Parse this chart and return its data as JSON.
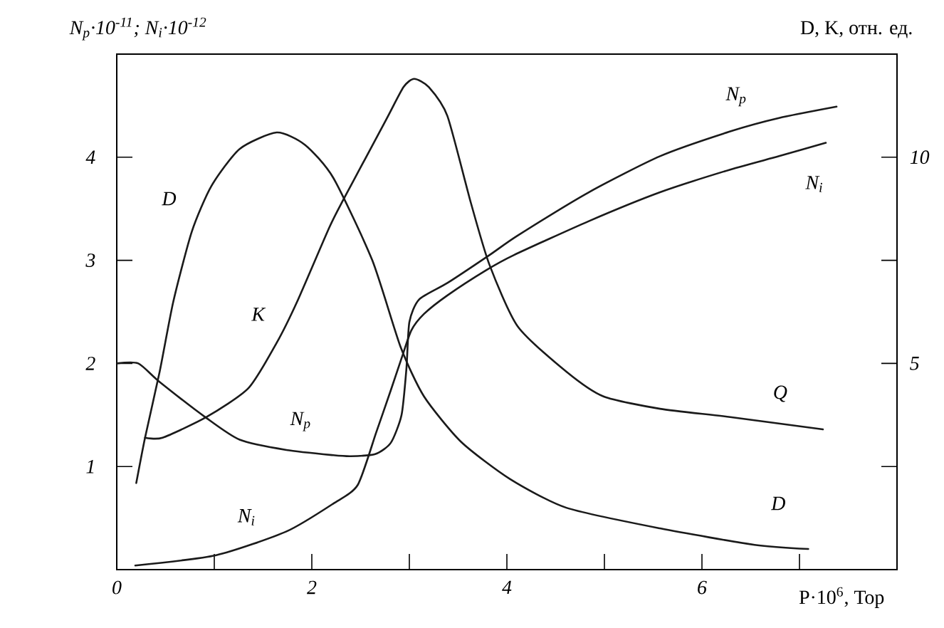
{
  "chart_data": {
    "type": "line",
    "xlabel": "P·10$^{6}$, Тор",
    "ylabel": "N$_{p}$·10$^{-11}$; N$_{i}$·10$^{-12}$",
    "y2label": "D, K, отн. ед.",
    "xlim": [
      0,
      8
    ],
    "xticks": [
      0,
      {
        "value": 1,
        "label": null
      },
      2,
      {
        "value": 3,
        "label": null
      },
      4,
      {
        "value": 5,
        "label": null
      },
      6,
      {
        "value": 7,
        "label": null
      }
    ],
    "ylim": [
      0,
      5
    ],
    "yticks": [
      1,
      2,
      3,
      4
    ],
    "y2lim": [
      0,
      12.5
    ],
    "y2ticks": [
      {
        "value": 2.5,
        "label": null
      },
      5,
      {
        "value": 7.5,
        "label": null
      },
      10
    ],
    "line_style": "solid",
    "series": [
      {
        "name": "D",
        "axis": "y2",
        "color": "#1a1a1a",
        "x": [
          0.2,
          0.29,
          0.44,
          0.58,
          0.77,
          0.97,
          1.26,
          1.64,
          1.93,
          2.22,
          2.62,
          2.91,
          3.15,
          3.53,
          4.03,
          4.61,
          5.57,
          6.54,
          7.09
        ],
        "values": [
          2.1,
          3.2,
          4.8,
          6.5,
          8.2,
          9.3,
          10.2,
          10.6,
          10.3,
          9.5,
          7.5,
          5.4,
          4.2,
          3.1,
          2.2,
          1.5,
          1.0,
          0.6,
          0.5
        ]
      },
      {
        "name": "K",
        "axis": "y2",
        "color": "#1a1a1a",
        "x": [
          0.29,
          0.47,
          0.92,
          1.35,
          1.64,
          1.85,
          2.18,
          2.33,
          2.76,
          2.94,
          3.05,
          3.2,
          3.39,
          3.63,
          3.82,
          4.11,
          4.61,
          4.99,
          5.57,
          6.29,
          7.24
        ],
        "values": [
          3.2,
          3.2,
          3.7,
          4.4,
          5.5,
          6.5,
          8.3,
          9.0,
          10.9,
          11.7,
          11.9,
          11.7,
          11.0,
          8.9,
          7.4,
          5.9,
          4.8,
          4.2,
          3.9,
          3.7,
          3.4
        ]
      },
      {
        "name": "N$_{p}$",
        "color": "#1a1a1a",
        "x": [
          0,
          0.22,
          0.44,
          0.92,
          1.26,
          1.74,
          2.22,
          2.4,
          2.65,
          2.81,
          2.92,
          2.97,
          3.0,
          3.1,
          3.39,
          3.82,
          4.11,
          4.84,
          5.57,
          6.29,
          6.79,
          7.38
        ],
        "values": [
          2.0,
          2.0,
          1.82,
          1.47,
          1.26,
          1.16,
          1.11,
          1.1,
          1.12,
          1.23,
          1.5,
          1.95,
          2.4,
          2.62,
          2.78,
          3.05,
          3.24,
          3.66,
          4.01,
          4.25,
          4.38,
          4.49
        ]
      },
      {
        "name": "N$_{i}$",
        "color": "#1a1a1a",
        "x": [
          0.19,
          1.02,
          1.74,
          2.22,
          2.47,
          2.66,
          2.81,
          2.92,
          3.02,
          3.15,
          3.39,
          3.78,
          4.07,
          4.84,
          5.57,
          6.29,
          6.79,
          7.27
        ],
        "values": [
          0.04,
          0.14,
          0.37,
          0.64,
          0.82,
          1.33,
          1.74,
          2.05,
          2.32,
          2.48,
          2.66,
          2.9,
          3.05,
          3.38,
          3.66,
          3.88,
          4.01,
          4.14
        ]
      }
    ],
    "annotations": [
      "N$_{p}$",
      "N$_{i}$",
      "Q",
      "D"
    ]
  }
}
